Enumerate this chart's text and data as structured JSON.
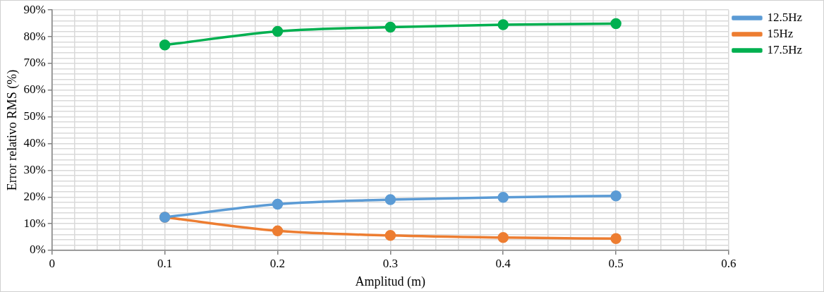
{
  "chart_data": {
    "type": "line",
    "xlabel": "Amplitud (m)",
    "ylabel": "Error relativo RMS (%)",
    "x": [
      0.1,
      0.2,
      0.3,
      0.4,
      0.5
    ],
    "series": [
      {
        "name": "12.5Hz",
        "color": "#5b9bd5",
        "values": [
          12.4,
          17.3,
          19.0,
          19.9,
          20.4
        ]
      },
      {
        "name": "15Hz",
        "color": "#ed7d31",
        "values": [
          12.4,
          7.3,
          5.6,
          4.8,
          4.4
        ]
      },
      {
        "name": "17.5Hz",
        "color": "#00b050",
        "values": [
          76.9,
          82.0,
          83.6,
          84.5,
          84.9
        ]
      }
    ],
    "xlim": [
      0,
      0.6
    ],
    "xticks": [
      0,
      {
        "value": 0.02,
        "label": null
      },
      {
        "value": 0.04,
        "label": null
      },
      {
        "value": 0.06,
        "label": null
      },
      {
        "value": 0.08,
        "label": null
      },
      0.1,
      {
        "value": 0.12,
        "label": null
      },
      {
        "value": 0.14,
        "label": null
      },
      {
        "value": 0.16,
        "label": null
      },
      {
        "value": 0.18,
        "label": null
      },
      0.2,
      {
        "value": 0.22,
        "label": null
      },
      {
        "value": 0.24,
        "label": null
      },
      {
        "value": 0.26,
        "label": null
      },
      {
        "value": 0.28,
        "label": null
      },
      0.3,
      {
        "value": 0.32,
        "label": null
      },
      {
        "value": 0.34,
        "label": null
      },
      {
        "value": 0.36,
        "label": null
      },
      {
        "value": 0.38,
        "label": null
      },
      0.4,
      {
        "value": 0.42,
        "label": null
      },
      {
        "value": 0.44,
        "label": null
      },
      {
        "value": 0.46,
        "label": null
      },
      {
        "value": 0.48,
        "label": null
      },
      0.5,
      {
        "value": 0.52,
        "label": null
      },
      {
        "value": 0.54,
        "label": null
      },
      {
        "value": 0.56,
        "label": null
      },
      {
        "value": 0.58,
        "label": null
      },
      0.6
    ],
    "ylim": [
      0,
      90
    ],
    "yticks": [
      {
        "value": 0,
        "label": "0%"
      },
      {
        "value": 2,
        "label": null
      },
      {
        "value": 4,
        "label": null
      },
      {
        "value": 6,
        "label": null
      },
      {
        "value": 8,
        "label": null
      },
      {
        "value": 10,
        "label": "10%"
      },
      {
        "value": 12,
        "label": null
      },
      {
        "value": 14,
        "label": null
      },
      {
        "value": 16,
        "label": null
      },
      {
        "value": 18,
        "label": null
      },
      {
        "value": 20,
        "label": "20%"
      },
      {
        "value": 22,
        "label": null
      },
      {
        "value": 24,
        "label": null
      },
      {
        "value": 26,
        "label": null
      },
      {
        "value": 28,
        "label": null
      },
      {
        "value": 30,
        "label": "30%"
      },
      {
        "value": 32,
        "label": null
      },
      {
        "value": 34,
        "label": null
      },
      {
        "value": 36,
        "label": null
      },
      {
        "value": 38,
        "label": null
      },
      {
        "value": 40,
        "label": "40%"
      },
      {
        "value": 42,
        "label": null
      },
      {
        "value": 44,
        "label": null
      },
      {
        "value": 46,
        "label": null
      },
      {
        "value": 48,
        "label": null
      },
      {
        "value": 50,
        "label": "50%"
      },
      {
        "value": 52,
        "label": null
      },
      {
        "value": 54,
        "label": null
      },
      {
        "value": 56,
        "label": null
      },
      {
        "value": 58,
        "label": null
      },
      {
        "value": 60,
        "label": "60%"
      },
      {
        "value": 62,
        "label": null
      },
      {
        "value": 64,
        "label": null
      },
      {
        "value": 66,
        "label": null
      },
      {
        "value": 68,
        "label": null
      },
      {
        "value": 70,
        "label": "70%"
      },
      {
        "value": 72,
        "label": null
      },
      {
        "value": 74,
        "label": null
      },
      {
        "value": 76,
        "label": null
      },
      {
        "value": 78,
        "label": null
      },
      {
        "value": 80,
        "label": "80%"
      },
      {
        "value": 82,
        "label": null
      },
      {
        "value": 84,
        "label": null
      },
      {
        "value": 86,
        "label": null
      },
      {
        "value": 88,
        "label": null
      },
      {
        "value": 90,
        "label": "90%"
      }
    ],
    "grid": true,
    "legend": "right",
    "marker": "circle",
    "line_style": "solid"
  }
}
